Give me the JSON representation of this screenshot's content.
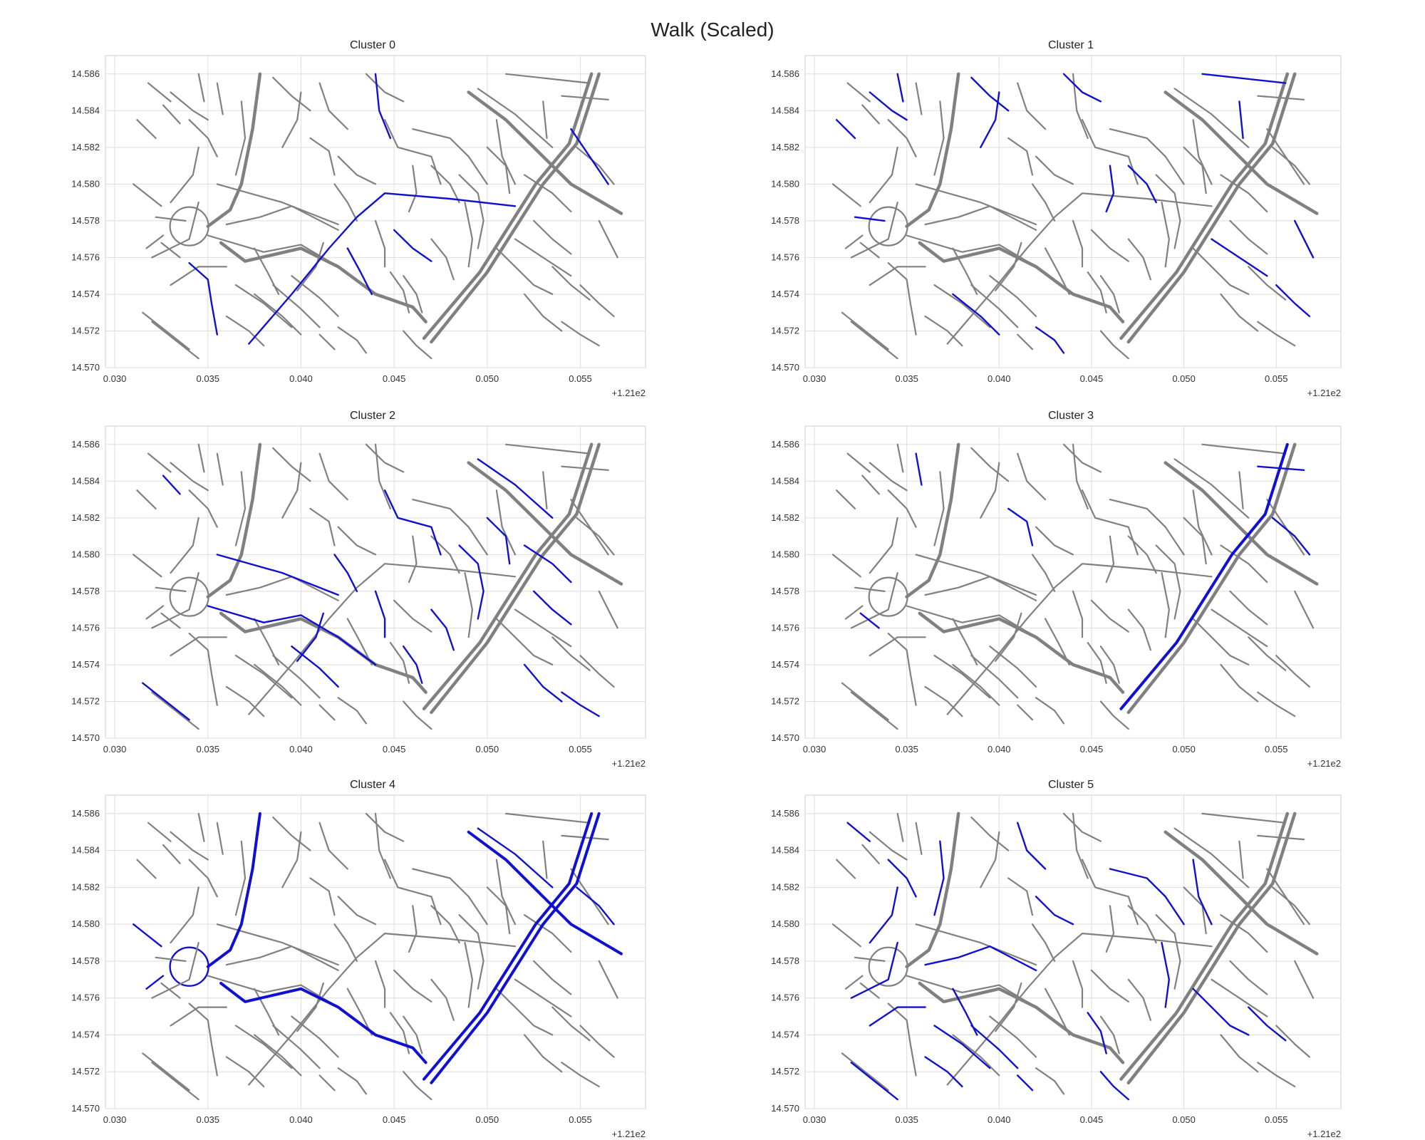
{
  "figure": {
    "suptitle": "Walk (Scaled)",
    "colors": {
      "network": "#808080",
      "highlight": "#1010d0",
      "grid": "#dedede",
      "frame": "#cfcfcf"
    }
  },
  "chart_data": [
    {
      "type": "map",
      "title": "Cluster 0",
      "xlim": [
        0.0295,
        0.0585
      ],
      "ylim": [
        14.57,
        14.587
      ],
      "x_ticks": [
        "0.030",
        "0.035",
        "0.040",
        "0.045",
        "0.050",
        "0.055"
      ],
      "y_ticks": [
        "14.586",
        "14.584",
        "14.582",
        "14.580",
        "14.578",
        "14.576",
        "14.574",
        "14.572",
        "14.570"
      ],
      "x_offset_label": "+1.21e2",
      "grid": true,
      "highlighted_segments": [
        "s2",
        "s5",
        "s31",
        "s32",
        "s34",
        "s47"
      ]
    },
    {
      "type": "map",
      "title": "Cluster 1",
      "xlim": [
        0.0295,
        0.0585
      ],
      "ylim": [
        14.57,
        14.587
      ],
      "x_ticks": [
        "0.030",
        "0.035",
        "0.040",
        "0.045",
        "0.050",
        "0.055"
      ],
      "y_ticks": [
        "14.586",
        "14.584",
        "14.582",
        "14.580",
        "14.578",
        "14.576",
        "14.574",
        "14.572",
        "14.570"
      ],
      "x_offset_label": "+1.21e2",
      "grid": true,
      "highlighted_segments": [
        "s10",
        "s14",
        "s16",
        "s22",
        "s24",
        "s27",
        "s38",
        "s43",
        "s49",
        "s51",
        "s55",
        "s57",
        "s60",
        "s63",
        "s66",
        "s68"
      ]
    },
    {
      "type": "map",
      "title": "Cluster 2",
      "xlim": [
        0.0295,
        0.0585
      ],
      "ylim": [
        14.57,
        14.587
      ],
      "x_ticks": [
        "0.030",
        "0.035",
        "0.040",
        "0.045",
        "0.050",
        "0.055"
      ],
      "y_ticks": [
        "14.586",
        "14.584",
        "14.582",
        "14.580",
        "14.578",
        "14.576",
        "14.574",
        "14.572",
        "14.570"
      ],
      "x_offset_label": "+1.21e2",
      "grid": true,
      "highlighted_segments": [
        "s1",
        "s8",
        "s12",
        "s18",
        "s21",
        "s25",
        "s28",
        "s30",
        "s33",
        "s36",
        "s39",
        "s41",
        "s45",
        "s48",
        "s52",
        "s58",
        "s62",
        "s67"
      ]
    },
    {
      "type": "map",
      "title": "Cluster 3",
      "xlim": [
        0.0295,
        0.0585
      ],
      "ylim": [
        14.57,
        14.587
      ],
      "x_ticks": [
        "0.030",
        "0.035",
        "0.040",
        "0.045",
        "0.050",
        "0.055"
      ],
      "y_ticks": [
        "14.586",
        "14.584",
        "14.582",
        "14.580",
        "14.578",
        "14.576",
        "14.574",
        "14.572",
        "14.570"
      ],
      "x_offset_label": "+1.21e2",
      "grid": true,
      "highlighted_segments": [
        "s42",
        "s44",
        "s46",
        "s56",
        "s64",
        "s69"
      ]
    },
    {
      "type": "map",
      "title": "Cluster 4",
      "xlim": [
        0.0295,
        0.0585
      ],
      "ylim": [
        14.57,
        14.587
      ],
      "x_ticks": [
        "0.030",
        "0.035",
        "0.040",
        "0.045",
        "0.050",
        "0.055"
      ],
      "y_ticks": [
        "14.586",
        "14.584",
        "14.582",
        "14.580",
        "14.578",
        "14.576",
        "14.574",
        "14.572",
        "14.570"
      ],
      "x_offset_label": "+1.21e2",
      "grid": true,
      "highlighted_segments": [
        "s0",
        "s3",
        "s4",
        "s6",
        "s40",
        "s41",
        "s42",
        "s46",
        "s70"
      ]
    },
    {
      "type": "map",
      "title": "Cluster 5",
      "xlim": [
        0.0295,
        0.0585
      ],
      "ylim": [
        14.57,
        14.587
      ],
      "x_ticks": [
        "0.030",
        "0.035",
        "0.040",
        "0.045",
        "0.050",
        "0.055"
      ],
      "y_ticks": [
        "14.586",
        "14.584",
        "14.582",
        "14.580",
        "14.578",
        "14.576",
        "14.574",
        "14.572",
        "14.570"
      ],
      "x_offset_label": "+1.21e2",
      "grid": true,
      "highlighted_segments": [
        "s7",
        "s9",
        "s11",
        "s13",
        "s15",
        "s17",
        "s19",
        "s20",
        "s23",
        "s26",
        "s29",
        "s35",
        "s37",
        "s50",
        "s53",
        "s54",
        "s59",
        "s61",
        "s65",
        "s71",
        "s72",
        "s73"
      ]
    }
  ]
}
